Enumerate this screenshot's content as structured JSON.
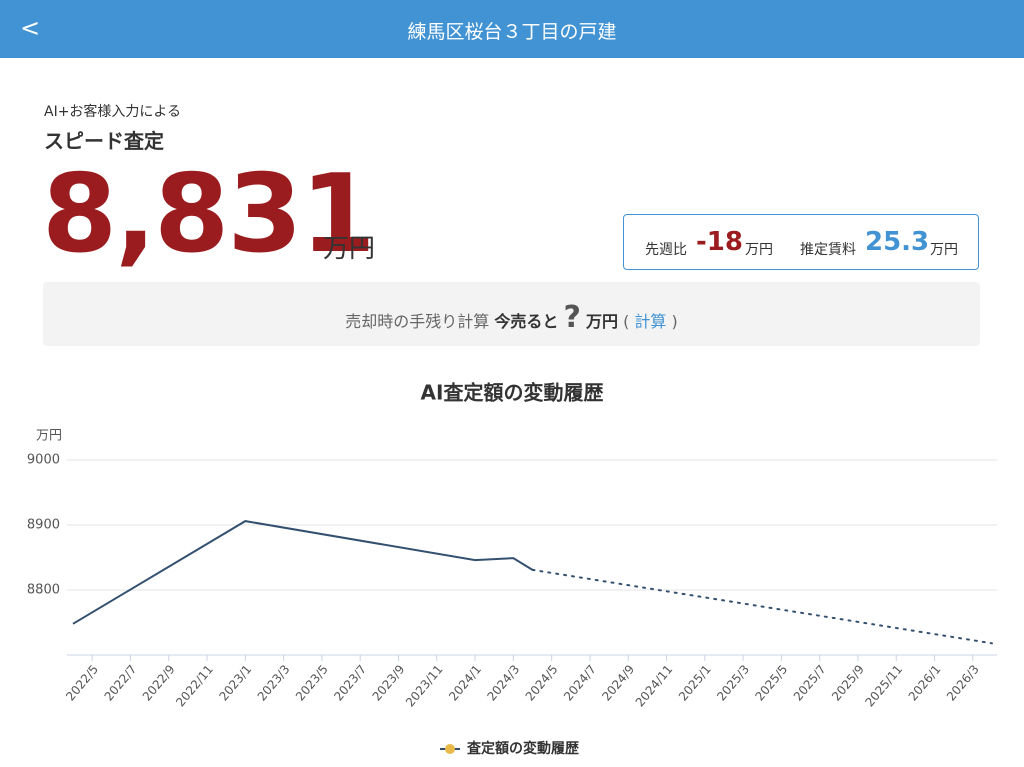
{
  "header": {
    "back": "<",
    "title": "練馬区桜台３丁目の戸建"
  },
  "appraisal": {
    "caption": "AI+お客様入力による",
    "label": "スピード査定",
    "value": "8,831",
    "unit": "万円"
  },
  "stats": {
    "weekly_label": "先週比",
    "weekly_change": -18,
    "weekly_unit": "万円",
    "rent_label": "推定賃料",
    "rent_value": 25.3,
    "rent_unit": "万円"
  },
  "sale": {
    "text": "売却時の手残り計算",
    "now": "今売ると",
    "question": "?",
    "unit": "万円",
    "open": "(",
    "link": "計算",
    "close": ")"
  },
  "chart_data": {
    "type": "line",
    "title": "AI査定額の変動履歴",
    "ylabel": "万円",
    "series": [
      {
        "name": "査定額の変動履歴",
        "color": "#34506f",
        "marker_color": "#e9b949",
        "style": "solid",
        "x": [
          "2022/4",
          "2023/1",
          "2024/1",
          "2024/3",
          "2024/4"
        ],
        "values": [
          8748,
          8906,
          8846,
          8849,
          8831
        ]
      },
      {
        "color": "#34506f",
        "style": "dotted",
        "x": [
          "2024/4",
          "2026/4"
        ],
        "values": [
          8831,
          8718
        ]
      }
    ],
    "xlim": [
      "2022/4",
      "2026/4"
    ],
    "xticks": [
      "2022/5",
      "2022/7",
      "2022/9",
      "2022/11",
      "2023/1",
      "2023/3",
      "2023/5",
      "2023/7",
      "2023/9",
      "2023/11",
      "2024/1",
      "2024/3",
      "2024/5",
      "2024/7",
      "2024/9",
      "2024/11",
      "2025/1",
      "2025/3",
      "2025/5",
      "2025/7",
      "2025/9",
      "2025/11",
      "2026/1",
      "2026/3"
    ],
    "ylim": [
      8700,
      9000
    ],
    "yticks": [
      8800,
      8900,
      9000
    ],
    "grid": true
  }
}
